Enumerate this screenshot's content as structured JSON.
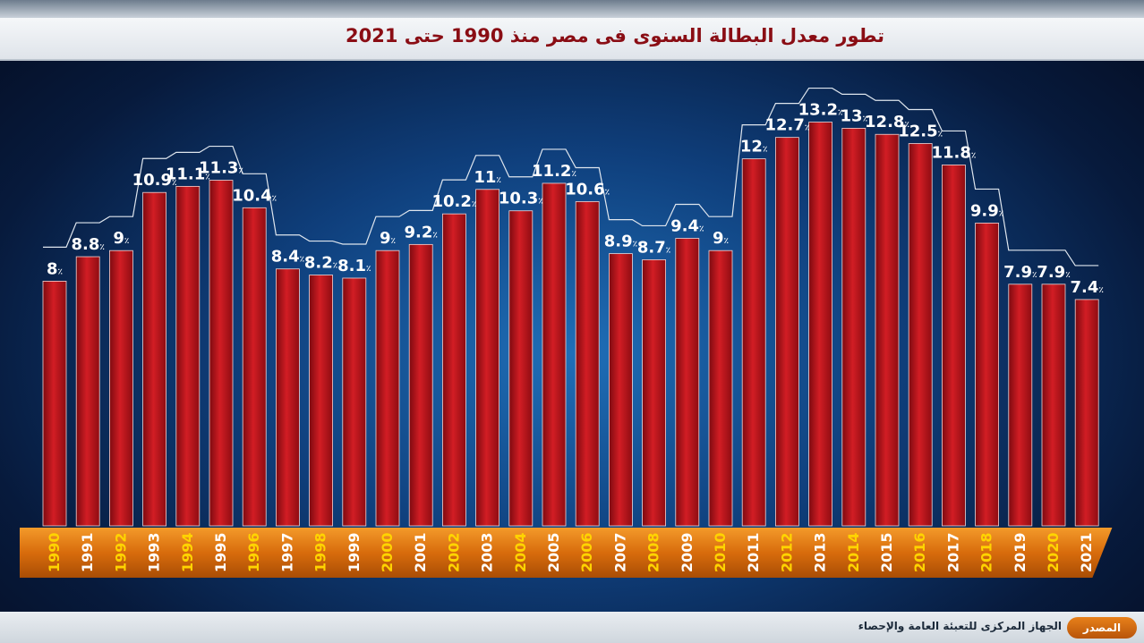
{
  "header": {
    "title": "تطور معدل البطالة السنوى فى مصر منذ 1990 حتى 2021"
  },
  "chart_data": {
    "type": "bar",
    "title": "تطور معدل البطالة السنوى فى مصر منذ 1990 حتى 2021",
    "categories": [
      "1990",
      "1991",
      "1992",
      "1993",
      "1994",
      "1995",
      "1996",
      "1997",
      "1998",
      "1999",
      "2000",
      "2001",
      "2002",
      "2003",
      "2004",
      "2005",
      "2006",
      "2007",
      "2008",
      "2009",
      "2010",
      "2011",
      "2012",
      "2013",
      "2014",
      "2015",
      "2016",
      "2017",
      "2018",
      "2019",
      "2020",
      "2021"
    ],
    "values": [
      8,
      8.8,
      9,
      10.9,
      11.1,
      11.3,
      10.4,
      8.4,
      8.2,
      8.1,
      9,
      9.2,
      10.2,
      11,
      10.3,
      11.2,
      10.6,
      8.9,
      8.7,
      9.4,
      9,
      12,
      12.7,
      13.2,
      13,
      12.8,
      12.5,
      11.8,
      9.9,
      7.9,
      7.9,
      7.4
    ],
    "value_suffix": "٪",
    "xlabel": "",
    "ylabel": "",
    "ylim": [
      0,
      15
    ],
    "grid": false,
    "colors": {
      "bar": "#c4161c",
      "bar_dark": "#7d0a10",
      "axis_band": "#e07a12",
      "year_label_even": "#ffd400",
      "year_label_odd": "#ffffff",
      "value_label": "#ffffff",
      "outline": "#dfe6ee"
    }
  },
  "footer": {
    "source_label": "المصدر",
    "source_text": "الجهاز المركزى للتعبئة العامة والإحصاء"
  }
}
